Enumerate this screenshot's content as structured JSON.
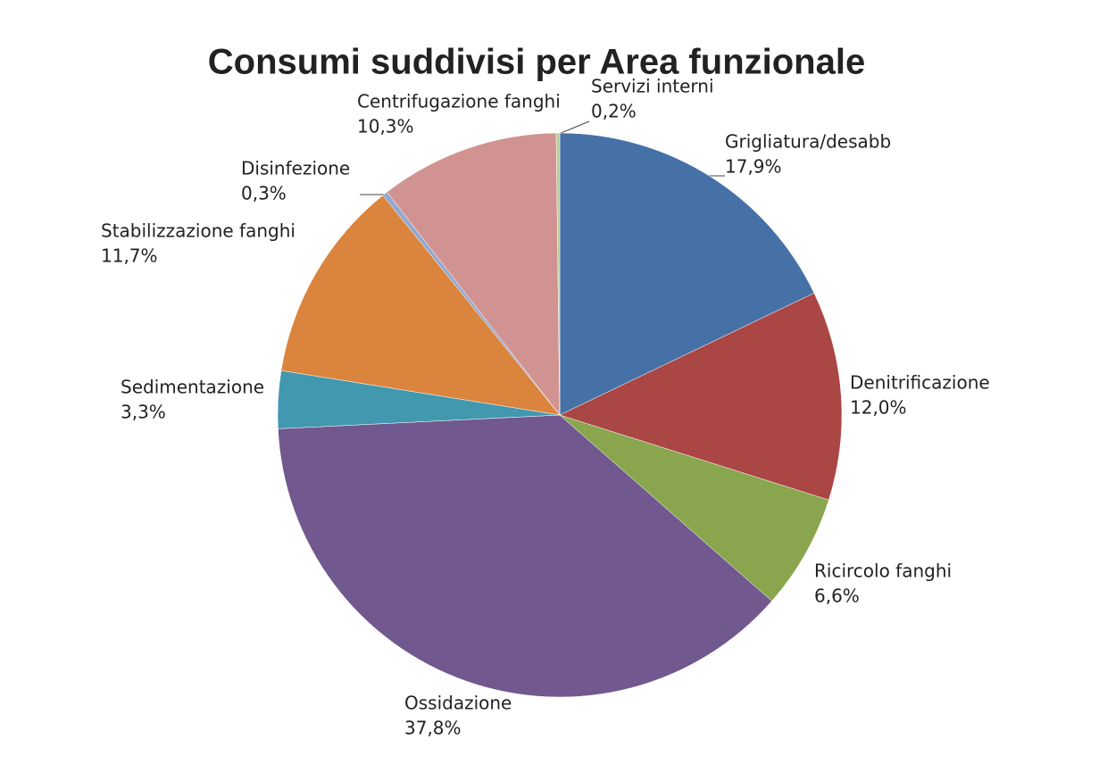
{
  "chart_data": {
    "type": "pie",
    "title": "Consumi suddivisi per Area funzionale",
    "categories": [
      "Grigliatura/desabb",
      "Denitrificazione",
      "Ricircolo fanghi",
      "Ossidazione",
      "Sedimentazione",
      "Stabilizzazione fanghi",
      "Disinfezione",
      "Centrifugazione fanghi",
      "Servizi interni"
    ],
    "values": [
      17.9,
      12.0,
      6.6,
      37.8,
      3.3,
      11.7,
      0.3,
      10.3,
      0.2
    ],
    "value_labels": [
      "17,9%",
      "12,0%",
      "6,6%",
      "37,8%",
      "3,3%",
      "11,7%",
      "0,3%",
      "10,3%",
      "0,2%"
    ],
    "colors": [
      "#4671a7",
      "#aa4643",
      "#89a54e",
      "#71588f",
      "#4198af",
      "#db843d",
      "#93a9cf",
      "#d19392",
      "#b9cd96"
    ]
  }
}
